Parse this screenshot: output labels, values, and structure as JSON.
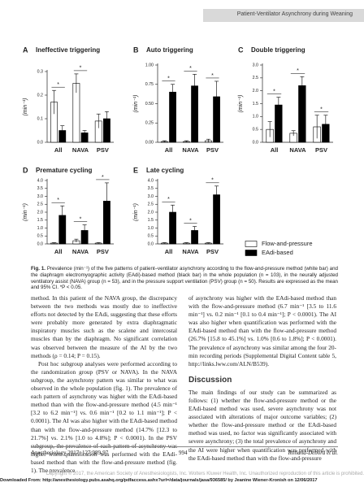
{
  "header": {
    "running_title": "Patient-Ventilator Asynchrony during Weaning"
  },
  "legend": [
    {
      "name": "Flow-and-pressure",
      "color": "#ffffff"
    },
    {
      "name": "EAdi-based",
      "color": "#000000"
    }
  ],
  "chart_data": [
    {
      "type": "bar",
      "panel": "A",
      "title": "Ineffective triggering",
      "ylabel": "(min⁻¹)",
      "categories": [
        "All",
        "NAVA",
        "PSV"
      ],
      "series": [
        {
          "values": [
            0.17,
            0.25,
            0.09
          ],
          "errors": [
            0.05,
            0.04,
            0.03
          ]
        },
        {
          "values": [
            0.05,
            0.04,
            0.1
          ],
          "errors": [
            0.02,
            0.01,
            0.03
          ]
        }
      ],
      "annotations": [
        "*",
        "*",
        null
      ],
      "ylim": [
        0,
        0.3
      ],
      "yticks": [
        {
          "value": 0,
          "label": "0.0"
        },
        0.1,
        0.2,
        0.3
      ]
    },
    {
      "type": "bar",
      "panel": "B",
      "title": "Auto triggering",
      "ylabel": "(min⁻¹)",
      "categories": [
        "All",
        "NAVA",
        "PSV"
      ],
      "series": [
        {
          "values": [
            0.01,
            0.01,
            0.02
          ],
          "errors": [
            0.01,
            0.01,
            0.02
          ]
        },
        {
          "values": [
            0.65,
            0.73,
            0.59
          ],
          "errors": [
            0.1,
            0.15,
            0.2
          ]
        }
      ],
      "annotations": [
        "*",
        "*",
        "*"
      ],
      "ylim": [
        0,
        1
      ],
      "yticks": [
        {
          "value": 0,
          "label": "0.00"
        },
        0.25,
        {
          "value": 0.5,
          "label": "0.50"
        },
        0.75,
        {
          "value": 1,
          "label": "1.00"
        }
      ]
    },
    {
      "type": "bar",
      "panel": "C",
      "title": "Double triggering",
      "ylabel": "(min⁻¹)",
      "categories": [
        "All",
        "NAVA",
        "PSV"
      ],
      "series": [
        {
          "values": [
            0.5,
            0.35,
            0.6
          ],
          "errors": [
            0.3,
            0.1,
            0.45
          ]
        },
        {
          "values": [
            1.45,
            2.2,
            0.7
          ],
          "errors": [
            0.3,
            0.35,
            0.35
          ]
        }
      ],
      "annotations": [
        "*",
        "*",
        "*"
      ],
      "ylim": [
        0,
        3
      ],
      "yticks": [
        {
          "value": 0,
          "label": "0.0"
        },
        0.5,
        {
          "value": 1,
          "label": "1.0"
        },
        1.5,
        {
          "value": 2,
          "label": "2.0"
        },
        2.5,
        {
          "value": 3,
          "label": "3.0"
        }
      ]
    },
    {
      "type": "bar",
      "panel": "D",
      "title": "Premature cycling",
      "ylabel": "(min⁻¹)",
      "categories": [
        "All",
        "NAVA",
        "PSV"
      ],
      "series": [
        {
          "values": [
            0.05,
            0.2,
            0.05
          ],
          "errors": [
            0.03,
            0.1,
            0.03
          ]
        },
        {
          "values": [
            1.8,
            0.85,
            2.7
          ],
          "errors": [
            0.6,
            0.35,
            1.15
          ]
        }
      ],
      "annotations": [
        "*",
        "*",
        "*"
      ],
      "ylim": [
        0,
        4
      ],
      "yticks": [
        {
          "value": 0,
          "label": "0.0"
        },
        0.5,
        {
          "value": 1,
          "label": "1.0"
        },
        1.5,
        {
          "value": 2,
          "label": "2.0"
        },
        2.5,
        {
          "value": 3,
          "label": "3.0"
        },
        3.5,
        {
          "value": 4,
          "label": "4.0"
        }
      ]
    },
    {
      "type": "bar",
      "panel": "E",
      "title": "Late cycling",
      "ylabel": "(min⁻¹)",
      "categories": [
        "All",
        "NAVA",
        "PSV"
      ],
      "series": [
        {
          "values": [
            0.05,
            0.05,
            0.05
          ],
          "errors": [
            0.03,
            0.03,
            0.03
          ]
        },
        {
          "values": [
            2.0,
            0.85,
            3.1
          ],
          "errors": [
            0.45,
            0.25,
            0.55
          ]
        }
      ],
      "annotations": [
        "*",
        "*",
        "*"
      ],
      "ylim": [
        0,
        4
      ],
      "yticks": [
        {
          "value": 0,
          "label": "0.0"
        },
        0.5,
        {
          "value": 1,
          "label": "1.0"
        },
        1.5,
        {
          "value": 2,
          "label": "2.0"
        },
        2.5,
        {
          "value": 3,
          "label": "3.0"
        },
        3.5,
        {
          "value": 4,
          "label": "4.0"
        }
      ]
    }
  ],
  "caption": {
    "label": "Fig. 1.",
    "text": "Prevalence (min⁻¹) of the five patterns of patient–ventilator asynchrony according to the flow-and-pressure method (white bar) and the diaphragm electromyographic activity (EAdi)-based method (black bar) in the whole population (n = 103), in the neurally adjusted ventilatory assist (NAVA) group (n = 53), and in the pressure support ventilation (PSV) group (n = 50). Results are expressed as the mean and 95% CI. *P < 0.05."
  },
  "body": {
    "left": [
      "method. In this patient of the NAVA group, the discrepancy between the two methods was mostly due to ineffective efforts not detected by the EAdi, suggesting that these efforts were probably more generated by extra diaphragmatic inspiratory muscles such as the scalene and intercostal muscles than by the diaphragm. No significant correlation was observed between the measure of the AI by the two methods (ρ = 0.14; P = 0.15).",
      "Post hoc subgroup analyses were performed according to the randomization group (PSV or NAVA). In the NAVA subgroup, the asynchrony pattern was similar to what was observed in the whole population (fig. 1). The prevalence of each pattern of asynchrony was higher with the EAdi-based method than with the flow-and-pressure method (4.5 min⁻¹ [3.2 to 6.2 min⁻¹] vs. 0.6 min⁻¹ [0.2 to 1.1 min⁻¹]; P < 0.0001). The AI was also higher with the EAdi-based method than with the flow-and-pressure method (14.7% [12.3 to 21.7%] vs. 2.1% [1.0 to 4.8%]; P < 0.0001). In the PSV subgroup, the prevalence of each pattern of asynchrony was higher when quantification was performed with the EAdi-based method than with the flow-and-pressure method (fig. 1). The prevalence"
    ],
    "right": [
      "of asynchrony was higher with the EAdi-based method than with the flow-and-pressure method (6.7 min⁻¹ [3.5 to 11.6 min⁻¹] vs. 0.2 min⁻¹ [0.1 to 0.4 min⁻¹]; P < 0.0001). The AI was also higher when quantification was performed with the EAdi-based method than with the flow-and-pressure method (26.7% [15.8 to 45.1%] vs. 1.0% [0.6 to 1.8%]; P < 0.0001). The prevalence of asynchrony was similar among the four 20-min recording periods (Supplemental Digital Content table 5, http://links.lww.com/ALN/B539)."
    ],
    "heading": "Discussion",
    "after_heading": "The main findings of our study can be summarized as follows: (1) whether the flow-and-pressure method or the EAdi-based method was used, severe asynchrony was not associated with alterations of major outcome variables; (2) whether the flow-and-pressure method or the EAdi-based method was used, no factor was significantly associated with severe asynchrony; (3) the total prevalence of asynchrony and the AI were higher when quantification was performed with the EAdi-based method than with the flow-and-pressure"
  },
  "footer": {
    "journal": "Anesthesiology 2017; 127:989-97",
    "page": "994",
    "authors": "Rolland-Debord et al.",
    "copyright": "Copyright © 2017, the American Society of Anesthesiologists, Inc. Wolters Kluwer Health, Inc. Unauthorized reproduction of this article is prohibited.",
    "download": "Downloaded From: http://anesthesiology.pubs.asahq.org/pdfaccess.ashx?url=/data/journals/jasa/936585/ by Jeanine Wiener-Kronish on 12/06/2017"
  }
}
